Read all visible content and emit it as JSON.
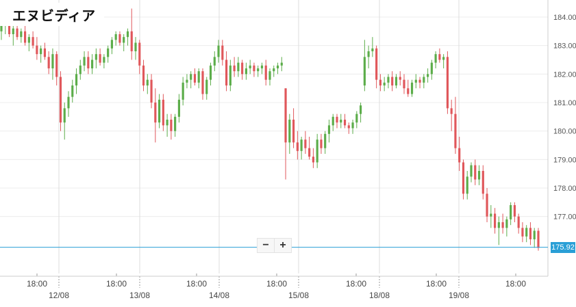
{
  "title": "エヌビディア",
  "zoom": {
    "minus": "−",
    "plus": "+"
  },
  "current_price_label": "175.92",
  "colors": {
    "up": "#5cad4a",
    "down": "#e0575b",
    "price_line": "#2a9fd6",
    "grid": "#ececec",
    "axis": "#cccccc"
  },
  "chart_data": {
    "type": "candlestick",
    "title": "エヌビディア",
    "ylim": [
      175.0,
      184.6
    ],
    "y_ticks": [
      "184.00",
      "183.00",
      "182.00",
      "181.00",
      "180.00",
      "179.00",
      "178.00",
      "177.00"
    ],
    "x_time_labels": [
      "18:00",
      "18:00",
      "18:00",
      "18:00",
      "18:00",
      "18:00",
      "18:00"
    ],
    "x_date_labels": [
      "12/08",
      "13/08",
      "14/08",
      "15/08",
      "18/08",
      "19/08"
    ],
    "current_price": 175.92,
    "grid": true,
    "candles_ohlc": [
      [
        183.5,
        183.9,
        183.2,
        183.7
      ],
      [
        183.7,
        184.0,
        183.4,
        183.9
      ],
      [
        183.9,
        184.0,
        183.3,
        183.4
      ],
      [
        183.4,
        183.7,
        183.0,
        183.6
      ],
      [
        183.6,
        183.8,
        183.2,
        183.3
      ],
      [
        183.3,
        183.6,
        183.1,
        183.5
      ],
      [
        183.5,
        183.7,
        183.0,
        183.1
      ],
      [
        183.1,
        183.4,
        182.8,
        183.3
      ],
      [
        183.3,
        183.5,
        182.9,
        183.0
      ],
      [
        183.0,
        183.3,
        182.5,
        182.7
      ],
      [
        182.7,
        183.0,
        182.4,
        182.9
      ],
      [
        182.9,
        183.1,
        182.5,
        182.6
      ],
      [
        182.6,
        182.8,
        182.0,
        182.2
      ],
      [
        182.2,
        182.9,
        181.8,
        182.7
      ],
      [
        182.7,
        182.8,
        181.6,
        181.9
      ],
      [
        181.9,
        182.1,
        180.0,
        180.3
      ],
      [
        180.3,
        181.0,
        179.7,
        180.8
      ],
      [
        180.8,
        181.4,
        180.5,
        181.2
      ],
      [
        181.2,
        181.8,
        181.0,
        181.6
      ],
      [
        181.6,
        182.2,
        181.3,
        182.0
      ],
      [
        182.0,
        182.5,
        181.8,
        182.3
      ],
      [
        182.3,
        182.8,
        182.1,
        182.6
      ],
      [
        182.6,
        182.8,
        182.0,
        182.2
      ],
      [
        182.2,
        182.7,
        182.0,
        182.5
      ],
      [
        182.5,
        182.9,
        182.2,
        182.7
      ],
      [
        182.7,
        182.9,
        182.3,
        182.4
      ],
      [
        182.4,
        182.7,
        182.2,
        182.6
      ],
      [
        182.6,
        183.0,
        182.4,
        182.9
      ],
      [
        182.9,
        183.3,
        182.7,
        183.2
      ],
      [
        183.2,
        183.5,
        183.0,
        183.4
      ],
      [
        183.4,
        183.5,
        183.0,
        183.1
      ],
      [
        183.1,
        183.4,
        182.8,
        183.3
      ],
      [
        183.3,
        183.6,
        183.0,
        183.5
      ],
      [
        183.5,
        184.3,
        182.5,
        182.8
      ],
      [
        182.8,
        183.3,
        182.5,
        183.1
      ],
      [
        183.1,
        183.2,
        182.0,
        182.3
      ],
      [
        182.3,
        182.5,
        181.4,
        181.6
      ],
      [
        181.6,
        182.0,
        181.3,
        181.8
      ],
      [
        181.8,
        182.0,
        180.8,
        181.0
      ],
      [
        181.0,
        181.5,
        179.6,
        180.3
      ],
      [
        180.3,
        181.3,
        180.1,
        181.1
      ],
      [
        181.1,
        181.3,
        180.0,
        180.2
      ],
      [
        180.2,
        180.6,
        179.8,
        180.4
      ],
      [
        180.4,
        180.6,
        179.7,
        180.0
      ],
      [
        180.0,
        180.6,
        179.8,
        180.5
      ],
      [
        180.5,
        181.3,
        180.3,
        181.1
      ],
      [
        181.1,
        181.9,
        180.9,
        181.7
      ],
      [
        181.7,
        182.0,
        181.5,
        181.8
      ],
      [
        181.8,
        182.1,
        181.5,
        182.0
      ],
      [
        182.0,
        182.2,
        181.6,
        181.7
      ],
      [
        181.7,
        182.2,
        181.5,
        182.1
      ],
      [
        182.1,
        182.2,
        181.1,
        181.3
      ],
      [
        181.3,
        181.9,
        181.1,
        181.8
      ],
      [
        181.8,
        182.4,
        181.6,
        182.3
      ],
      [
        182.3,
        182.8,
        182.1,
        182.6
      ],
      [
        182.6,
        183.2,
        182.4,
        183.0
      ],
      [
        183.0,
        183.2,
        182.3,
        182.5
      ],
      [
        182.5,
        182.8,
        181.4,
        181.6
      ],
      [
        181.6,
        182.5,
        181.4,
        182.3
      ],
      [
        182.3,
        182.6,
        181.9,
        182.1
      ],
      [
        182.1,
        182.6,
        181.9,
        182.4
      ],
      [
        182.4,
        182.5,
        181.8,
        182.0
      ],
      [
        182.0,
        182.4,
        181.8,
        182.2
      ],
      [
        182.2,
        182.5,
        182.0,
        182.3
      ],
      [
        182.3,
        182.4,
        181.9,
        182.1
      ],
      [
        182.1,
        182.3,
        181.9,
        182.2
      ],
      [
        182.2,
        182.4,
        182.0,
        182.3
      ],
      [
        182.3,
        182.5,
        181.6,
        181.8
      ],
      [
        181.8,
        182.2,
        181.6,
        182.1
      ],
      [
        182.1,
        182.3,
        181.9,
        182.2
      ],
      [
        182.2,
        182.4,
        182.0,
        182.3
      ],
      [
        182.3,
        182.6,
        182.1,
        182.4
      ],
      [
        181.5,
        181.5,
        178.3,
        179.6
      ],
      [
        179.6,
        180.6,
        179.2,
        180.4
      ],
      [
        180.4,
        180.8,
        179.4,
        179.6
      ],
      [
        179.6,
        180.0,
        179.0,
        179.3
      ],
      [
        179.3,
        179.8,
        179.0,
        179.7
      ],
      [
        179.7,
        180.0,
        179.2,
        179.4
      ],
      [
        179.4,
        179.8,
        179.0,
        179.1
      ],
      [
        179.1,
        179.4,
        178.7,
        178.9
      ],
      [
        178.9,
        179.9,
        178.7,
        179.7
      ],
      [
        179.7,
        179.9,
        179.2,
        179.4
      ],
      [
        179.4,
        180.0,
        179.2,
        179.9
      ],
      [
        179.9,
        180.4,
        179.6,
        180.2
      ],
      [
        180.2,
        180.6,
        180.0,
        180.5
      ],
      [
        180.5,
        180.6,
        180.1,
        180.3
      ],
      [
        180.3,
        180.6,
        180.1,
        180.4
      ],
      [
        180.4,
        180.6,
        180.1,
        180.2
      ],
      [
        180.2,
        180.3,
        179.9,
        180.1
      ],
      [
        180.1,
        180.4,
        179.9,
        180.3
      ],
      [
        180.3,
        180.7,
        180.1,
        180.6
      ],
      [
        180.6,
        181.0,
        180.3,
        180.9
      ],
      [
        181.6,
        183.2,
        181.4,
        182.6
      ],
      [
        182.6,
        183.0,
        182.2,
        182.8
      ],
      [
        182.8,
        183.3,
        182.6,
        182.9
      ],
      [
        182.9,
        183.0,
        181.5,
        181.8
      ],
      [
        181.8,
        182.0,
        181.4,
        181.6
      ],
      [
        181.6,
        181.9,
        181.4,
        181.7
      ],
      [
        181.7,
        182.0,
        181.5,
        181.9
      ],
      [
        181.9,
        182.1,
        181.4,
        181.6
      ],
      [
        181.6,
        182.0,
        181.5,
        181.9
      ],
      [
        181.9,
        182.1,
        181.6,
        181.8
      ],
      [
        181.8,
        182.0,
        181.3,
        181.5
      ],
      [
        181.5,
        181.8,
        181.2,
        181.3
      ],
      [
        181.3,
        181.8,
        181.2,
        181.7
      ],
      [
        181.7,
        182.0,
        181.5,
        181.8
      ],
      [
        181.8,
        181.9,
        181.5,
        181.7
      ],
      [
        181.7,
        182.0,
        181.5,
        181.9
      ],
      [
        181.9,
        182.2,
        181.7,
        182.0
      ],
      [
        182.0,
        182.5,
        181.8,
        182.4
      ],
      [
        182.4,
        182.8,
        182.2,
        182.7
      ],
      [
        182.7,
        182.9,
        182.4,
        182.5
      ],
      [
        182.5,
        182.7,
        182.2,
        182.6
      ],
      [
        182.6,
        182.8,
        180.6,
        180.8
      ],
      [
        180.8,
        181.1,
        180.0,
        180.6
      ],
      [
        180.6,
        181.2,
        179.2,
        179.4
      ],
      [
        179.4,
        179.8,
        178.6,
        178.9
      ],
      [
        178.9,
        179.0,
        177.6,
        177.8
      ],
      [
        177.8,
        178.6,
        177.6,
        178.4
      ],
      [
        178.4,
        178.9,
        178.2,
        178.8
      ],
      [
        178.8,
        179.0,
        178.1,
        178.3
      ],
      [
        178.3,
        178.8,
        178.1,
        178.6
      ],
      [
        178.6,
        178.8,
        177.6,
        177.8
      ],
      [
        177.8,
        178.0,
        176.8,
        177.0
      ],
      [
        177.0,
        177.4,
        176.6,
        177.1
      ],
      [
        177.1,
        177.3,
        176.4,
        176.6
      ],
      [
        176.6,
        177.0,
        176.0,
        176.8
      ],
      [
        176.8,
        177.1,
        176.4,
        176.6
      ],
      [
        176.6,
        177.0,
        176.3,
        176.9
      ],
      [
        176.9,
        177.5,
        176.7,
        177.4
      ],
      [
        177.4,
        177.5,
        176.8,
        177.0
      ],
      [
        177.0,
        177.1,
        176.4,
        176.6
      ],
      [
        176.6,
        176.8,
        176.1,
        176.3
      ],
      [
        176.3,
        176.7,
        176.1,
        176.6
      ],
      [
        176.6,
        176.8,
        176.0,
        176.2
      ],
      [
        176.2,
        176.6,
        175.9,
        176.5
      ],
      [
        176.5,
        176.6,
        175.8,
        175.9
      ]
    ]
  }
}
